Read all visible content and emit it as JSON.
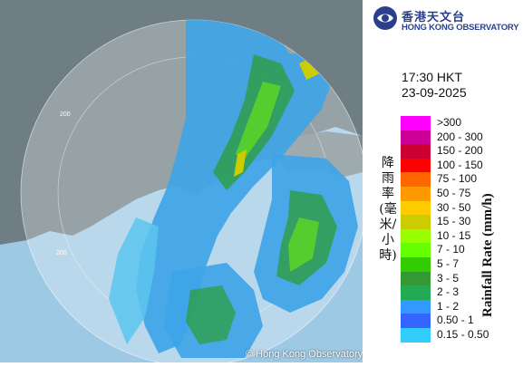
{
  "logo": {
    "name_cn": "香港天文台",
    "name_en": "HONG KONG OBSERVATORY"
  },
  "timestamp": {
    "time": "17:30 HKT",
    "date": "23-09-2025"
  },
  "legend": {
    "title_cn": "降雨率(毫米/小時)",
    "title_en": "Rainfall Rate (mm/h)",
    "items": [
      {
        "label": ">300",
        "color": "#ff00ff"
      },
      {
        "label": "200 - 300",
        "color": "#cc0099"
      },
      {
        "label": "150 - 200",
        "color": "#cc0033"
      },
      {
        "label": "100 - 150",
        "color": "#ff0000"
      },
      {
        "label": "75 - 100",
        "color": "#ff6600"
      },
      {
        "label": "50 - 75",
        "color": "#ff9900"
      },
      {
        "label": "30 - 50",
        "color": "#ffcc00"
      },
      {
        "label": "15 - 30",
        "color": "#cccc00"
      },
      {
        "label": "10 - 15",
        "color": "#99ff00"
      },
      {
        "label": "7 - 10",
        "color": "#66ff00"
      },
      {
        "label": "5 - 7",
        "color": "#33cc00"
      },
      {
        "label": "3 - 5",
        "color": "#339933"
      },
      {
        "label": "2 - 3",
        "color": "#22aa55"
      },
      {
        "label": "1 - 2",
        "color": "#3399ff"
      },
      {
        "label": "0.50 - 1",
        "color": "#3366ff"
      },
      {
        "label": "0.15 - 0.50",
        "color": "#33ccff"
      }
    ]
  },
  "map": {
    "range_labels": [
      "200",
      "200"
    ],
    "copyright": "© Hong Kong Observatory",
    "colors": {
      "sea": "#9ec9e5",
      "land": "#6f7e84",
      "radar_disc": "rgba(255,255,255,0.28)"
    }
  }
}
